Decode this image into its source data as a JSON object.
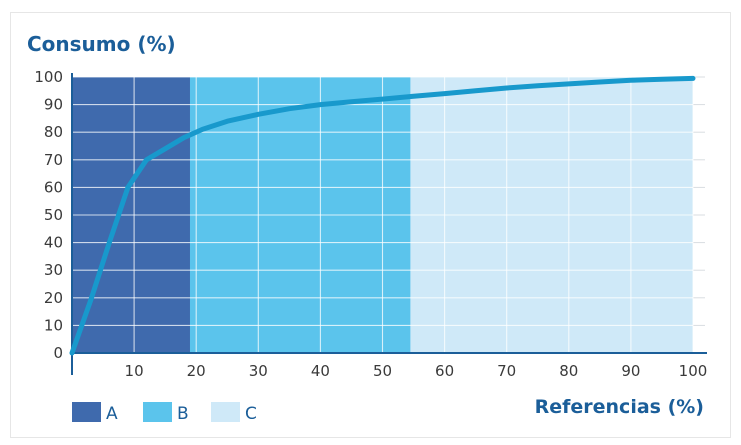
{
  "chart_data": {
    "type": "area",
    "ylabel": "Consumo (%)",
    "xlabel": "Referencias (%)",
    "xlim": [
      0,
      100
    ],
    "ylim": [
      0,
      100
    ],
    "x_ticks": [
      10,
      20,
      30,
      40,
      50,
      60,
      70,
      80,
      90,
      100
    ],
    "y_ticks": [
      0,
      10,
      20,
      30,
      40,
      50,
      60,
      70,
      80,
      90,
      100
    ],
    "grid": true,
    "zones": [
      {
        "name": "A",
        "x_start": 0,
        "x_end": 19,
        "color": "#3f6aad"
      },
      {
        "name": "B",
        "x_start": 19,
        "x_end": 54.5,
        "color": "#5bc4ec"
      },
      {
        "name": "C",
        "x_start": 54.5,
        "x_end": 100,
        "color": "#cfe9f8"
      }
    ],
    "series": [
      {
        "color": "#1899cc",
        "x": [
          0,
          3,
          6,
          9,
          12,
          15,
          18,
          21,
          25,
          30,
          35,
          40,
          45,
          50,
          55,
          60,
          65,
          70,
          75,
          80,
          85,
          90,
          95,
          100
        ],
        "y": [
          0,
          19,
          40,
          60,
          70,
          74,
          78,
          81,
          84,
          86.5,
          88.5,
          90,
          91,
          92,
          93,
          94,
          95,
          96,
          96.8,
          97.5,
          98.2,
          98.8,
          99.2,
          99.5
        ]
      }
    ],
    "legend": {
      "placement": "bottom-left",
      "items": [
        "A",
        "B",
        "C"
      ]
    }
  }
}
